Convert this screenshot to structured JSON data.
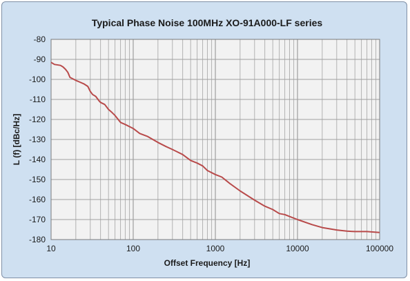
{
  "chart_data": {
    "type": "line",
    "title": "Typical Phase Noise 100MHz XO-91A000-LF series",
    "xlabel": "Offset Frequency [Hz]",
    "ylabel": "L (f) [dBc/Hz]",
    "x_scale": "log",
    "xlim": [
      10,
      100000
    ],
    "ylim": [
      -180,
      -80
    ],
    "x_ticks": [
      10,
      100,
      1000,
      10000,
      100000
    ],
    "x_tick_labels": [
      "10",
      "100",
      "1000",
      "10000",
      "100000"
    ],
    "y_ticks": [
      -80,
      -90,
      -100,
      -110,
      -120,
      -130,
      -140,
      -150,
      -160,
      -170,
      -180
    ],
    "y_tick_labels": [
      "-80",
      "-90",
      "-100",
      "-110",
      "-120",
      "-130",
      "-140",
      "-150",
      "-160",
      "-170",
      "-180"
    ],
    "grid": true,
    "line_color": "#b84a4a",
    "plot_background": "#f2f2f2",
    "series": [
      {
        "x": [
          10,
          11,
          13,
          14,
          15,
          16,
          17,
          18,
          20,
          22,
          25,
          28,
          30,
          32,
          35,
          38,
          40,
          45,
          50,
          55,
          60,
          70,
          80,
          100,
          120,
          150,
          200,
          250,
          300,
          400,
          500,
          600,
          700,
          800,
          1000,
          1200,
          1500,
          2000,
          3000,
          4000,
          5000,
          6000,
          7000,
          8000,
          10000,
          15000,
          20000,
          30000,
          40000,
          50000,
          70000,
          100000
        ],
        "y": [
          -91.5,
          -92.5,
          -93,
          -93.8,
          -95,
          -96.5,
          -99,
          -99.5,
          -100.5,
          -101.2,
          -102.2,
          -103.5,
          -106,
          -107.5,
          -108.5,
          -110.5,
          -111.5,
          -112.5,
          -115,
          -116.5,
          -118,
          -121.5,
          -122.5,
          -124.5,
          -127,
          -128.5,
          -131.5,
          -133.5,
          -135,
          -137.5,
          -140.5,
          -141.8,
          -143.2,
          -145.5,
          -147.5,
          -148.8,
          -152,
          -155.7,
          -160.3,
          -163.3,
          -165,
          -167,
          -167.5,
          -168.5,
          -170,
          -172.5,
          -174,
          -175.2,
          -175.8,
          -176,
          -176,
          -176.5
        ]
      }
    ]
  }
}
